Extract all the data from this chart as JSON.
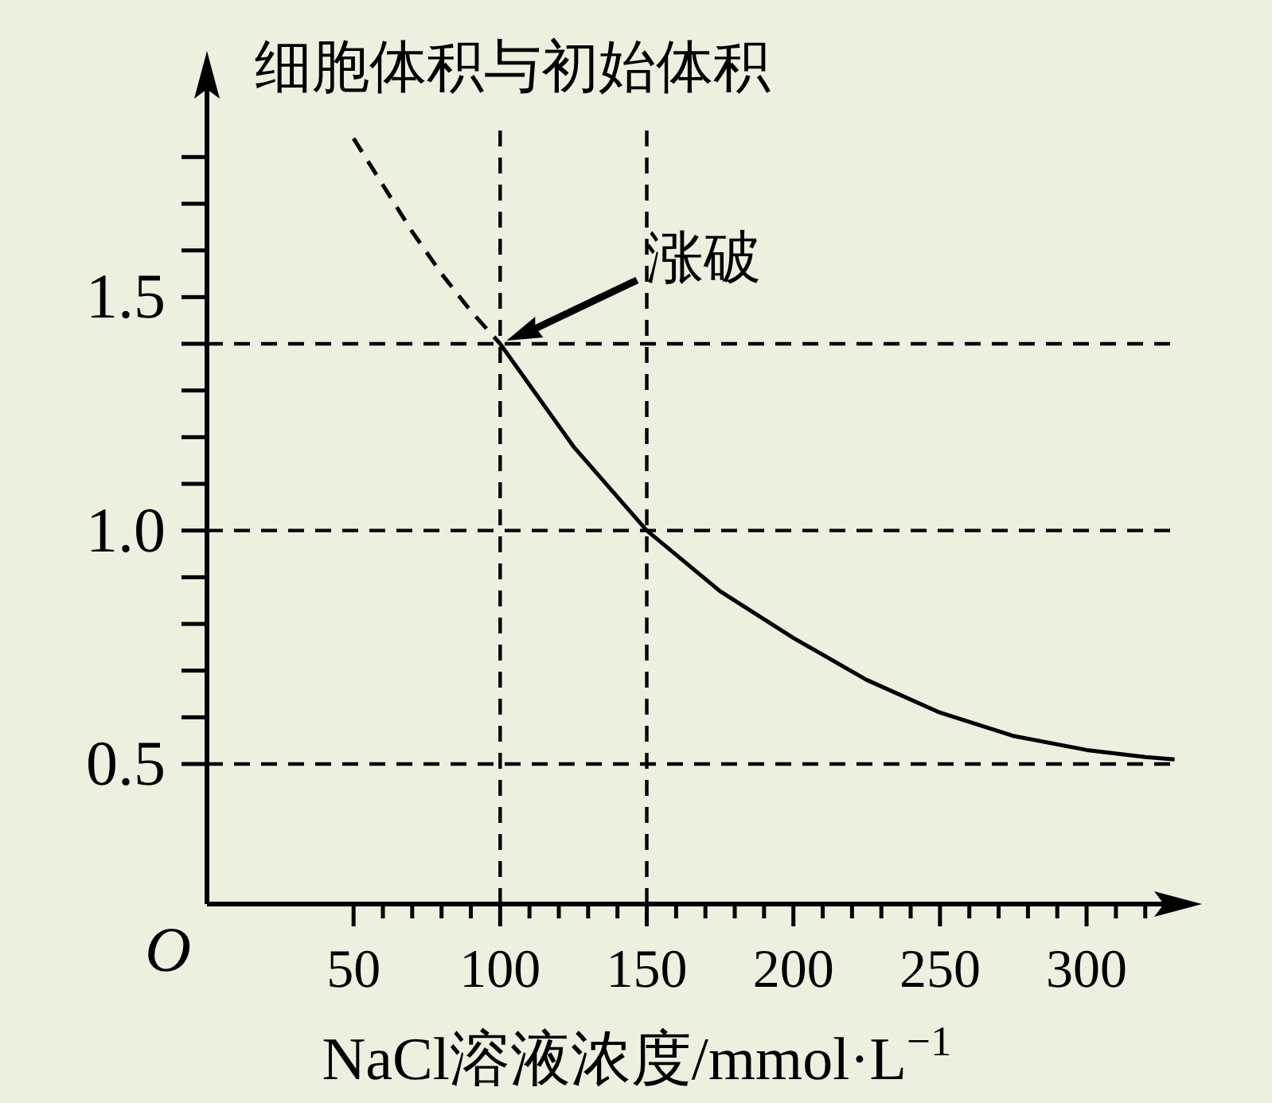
{
  "chart_data": {
    "type": "line",
    "ylabel": "细胞体积与初始体积",
    "xlabel": "NaCl溶液浓度/mmol·L$^{−1}$",
    "series": [
      {
        "x": [
          50,
          60,
          70,
          80,
          90,
          100
        ],
        "values": [
          1.84,
          1.74,
          1.64,
          1.55,
          1.47,
          1.4
        ],
        "color": "#000000",
        "line_style": "dashed"
      },
      {
        "x": [
          100,
          125,
          150,
          175,
          200,
          225,
          250,
          275,
          300,
          320,
          330
        ],
        "values": [
          1.4,
          1.18,
          1.0,
          0.87,
          0.77,
          0.68,
          0.61,
          0.56,
          0.53,
          0.515,
          0.51
        ],
        "color": "#000000",
        "line_style": "solid"
      }
    ],
    "xlim": [
      0,
      335
    ],
    "ylim": [
      0.2,
      2.0
    ],
    "xticks": [
      50,
      {
        "value": 60,
        "label": null
      },
      {
        "value": 70,
        "label": null
      },
      {
        "value": 80,
        "label": null
      },
      {
        "value": 90,
        "label": null
      },
      100,
      {
        "value": 110,
        "label": null
      },
      {
        "value": 120,
        "label": null
      },
      {
        "value": 130,
        "label": null
      },
      {
        "value": 140,
        "label": null
      },
      150,
      {
        "value": 160,
        "label": null
      },
      {
        "value": 170,
        "label": null
      },
      {
        "value": 180,
        "label": null
      },
      {
        "value": 190,
        "label": null
      },
      200,
      {
        "value": 210,
        "label": null
      },
      {
        "value": 220,
        "label": null
      },
      {
        "value": 230,
        "label": null
      },
      {
        "value": 240,
        "label": null
      },
      250,
      {
        "value": 260,
        "label": null
      },
      {
        "value": 270,
        "label": null
      },
      {
        "value": 280,
        "label": null
      },
      {
        "value": 290,
        "label": null
      },
      300,
      {
        "value": 310,
        "label": null
      },
      {
        "value": 320,
        "label": null
      }
    ],
    "yticks": [
      0.5,
      {
        "value": 0.6,
        "label": null
      },
      {
        "value": 0.7,
        "label": null
      },
      {
        "value": 0.8,
        "label": null
      },
      {
        "value": 0.9,
        "label": null
      },
      {
        "value": 1.0,
        "label": "1.0"
      },
      {
        "value": 1.1,
        "label": null
      },
      {
        "value": 1.2,
        "label": null
      },
      {
        "value": 1.3,
        "label": null
      },
      {
        "value": 1.4,
        "label": null
      },
      1.5,
      {
        "value": 1.6,
        "label": null
      },
      {
        "value": 1.7,
        "label": null
      },
      {
        "value": 1.8,
        "label": null
      }
    ],
    "ref_lines": [
      {
        "axis": "x",
        "value": 100,
        "line_style": "dashed"
      },
      {
        "axis": "x",
        "value": 150,
        "line_style": "dashed"
      },
      {
        "axis": "y",
        "value": 1.4,
        "line_style": "dashed"
      },
      {
        "axis": "y",
        "value": 1.0,
        "line_style": "dashed"
      },
      {
        "axis": "y",
        "value": 0.5,
        "line_style": "dashed"
      }
    ],
    "annotations": [
      "O",
      {
        "text": "涨破",
        "x": 100,
        "y": 1.4
      }
    ]
  }
}
